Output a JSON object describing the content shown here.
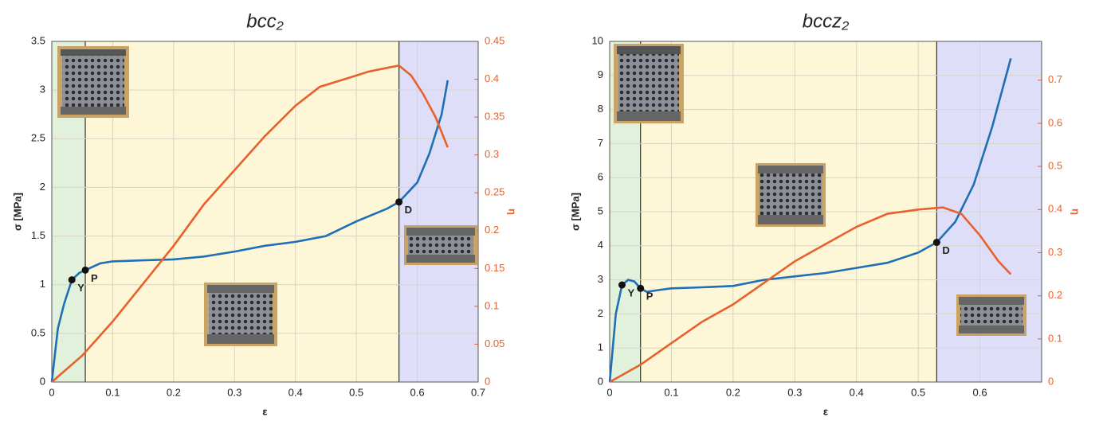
{
  "chart_data": [
    {
      "type": "line",
      "title": "bcc₂",
      "x_label": "ε",
      "y_label": "σ  [MPa]",
      "y2_label": "η",
      "xlim": [
        0,
        0.7
      ],
      "xticks": [
        0,
        0.1,
        0.2,
        0.3,
        0.4,
        0.5,
        0.6,
        0.7
      ],
      "ylim": [
        0,
        3.5
      ],
      "yticks": [
        0,
        0.5,
        1,
        1.5,
        2,
        2.5,
        3,
        3.5
      ],
      "y2lim": [
        0,
        0.45
      ],
      "y2ticks": [
        0,
        0.05,
        0.1,
        0.15,
        0.2,
        0.25,
        0.3,
        0.35,
        0.4,
        0.45
      ],
      "y2_color": "#e8602c",
      "grid": true,
      "regions": [
        {
          "from": 0,
          "to": 0.055,
          "color": "#dff0d8"
        },
        {
          "from": 0.055,
          "to": 0.57,
          "color": "#fdf6d3"
        },
        {
          "from": 0.57,
          "to": 0.7,
          "color": "#dcdaf7"
        }
      ],
      "points": [
        {
          "label": "Y",
          "x": 0.033,
          "y": 1.05
        },
        {
          "label": "P",
          "x": 0.055,
          "y": 1.15
        },
        {
          "label": "D",
          "x": 0.57,
          "y": 1.85
        }
      ],
      "series": [
        {
          "color": "#1f6fb5",
          "axis": "y",
          "x": [
            0,
            0.01,
            0.02,
            0.033,
            0.045,
            0.055,
            0.08,
            0.1,
            0.15,
            0.2,
            0.25,
            0.3,
            0.35,
            0.4,
            0.45,
            0.5,
            0.55,
            0.57,
            0.6,
            0.62,
            0.64,
            0.65
          ],
          "values": [
            0,
            0.55,
            0.8,
            1.05,
            1.12,
            1.15,
            1.22,
            1.24,
            1.25,
            1.26,
            1.29,
            1.34,
            1.4,
            1.44,
            1.5,
            1.65,
            1.78,
            1.85,
            2.05,
            2.35,
            2.75,
            3.1
          ]
        },
        {
          "color": "#e8602c",
          "axis": "y2",
          "x": [
            0,
            0.05,
            0.1,
            0.15,
            0.2,
            0.25,
            0.3,
            0.35,
            0.4,
            0.44,
            0.48,
            0.52,
            0.55,
            0.57,
            0.59,
            0.61,
            0.63,
            0.65
          ],
          "values": [
            0,
            0.035,
            0.08,
            0.13,
            0.18,
            0.235,
            0.28,
            0.325,
            0.365,
            0.39,
            0.4,
            0.41,
            0.415,
            0.418,
            0.405,
            0.38,
            0.35,
            0.31
          ]
        }
      ]
    },
    {
      "type": "line",
      "title": "bccz₂",
      "x_label": "ε",
      "y_label": "σ  [MPa]",
      "y2_label": "η",
      "xlim": [
        0,
        0.7
      ],
      "xticks": [
        0,
        0.1,
        0.2,
        0.3,
        0.4,
        0.5,
        0.6
      ],
      "ylim": [
        0,
        10
      ],
      "yticks": [
        0,
        1,
        2,
        3,
        4,
        5,
        6,
        7,
        8,
        9,
        10
      ],
      "y2lim": [
        0,
        0.79
      ],
      "y2ticks": [
        0,
        0.1,
        0.2,
        0.3,
        0.4,
        0.5,
        0.6,
        0.7
      ],
      "y2_color": "#e8602c",
      "grid": true,
      "regions": [
        {
          "from": 0,
          "to": 0.05,
          "color": "#dff0d8"
        },
        {
          "from": 0.05,
          "to": 0.53,
          "color": "#fdf6d3"
        },
        {
          "from": 0.53,
          "to": 0.7,
          "color": "#dcdaf7"
        }
      ],
      "points": [
        {
          "label": "Y",
          "x": 0.02,
          "y": 2.85
        },
        {
          "label": "P",
          "x": 0.05,
          "y": 2.75
        },
        {
          "label": "D",
          "x": 0.53,
          "y": 4.1
        }
      ],
      "series": [
        {
          "color": "#1f6fb5",
          "axis": "y",
          "x": [
            0,
            0.005,
            0.01,
            0.02,
            0.03,
            0.04,
            0.05,
            0.06,
            0.08,
            0.1,
            0.15,
            0.2,
            0.25,
            0.3,
            0.35,
            0.4,
            0.45,
            0.5,
            0.53,
            0.56,
            0.59,
            0.62,
            0.65
          ],
          "values": [
            0,
            1.0,
            2.0,
            2.85,
            3.0,
            2.95,
            2.75,
            2.65,
            2.7,
            2.75,
            2.78,
            2.82,
            3.0,
            3.1,
            3.2,
            3.35,
            3.5,
            3.8,
            4.1,
            4.7,
            5.8,
            7.5,
            9.5
          ]
        },
        {
          "color": "#e8602c",
          "axis": "y2",
          "x": [
            0,
            0.05,
            0.1,
            0.15,
            0.2,
            0.25,
            0.3,
            0.35,
            0.4,
            0.45,
            0.5,
            0.54,
            0.57,
            0.6,
            0.63,
            0.65
          ],
          "values": [
            0,
            0.04,
            0.09,
            0.14,
            0.18,
            0.23,
            0.28,
            0.32,
            0.36,
            0.39,
            0.4,
            0.405,
            0.39,
            0.34,
            0.28,
            0.25
          ]
        }
      ]
    }
  ]
}
